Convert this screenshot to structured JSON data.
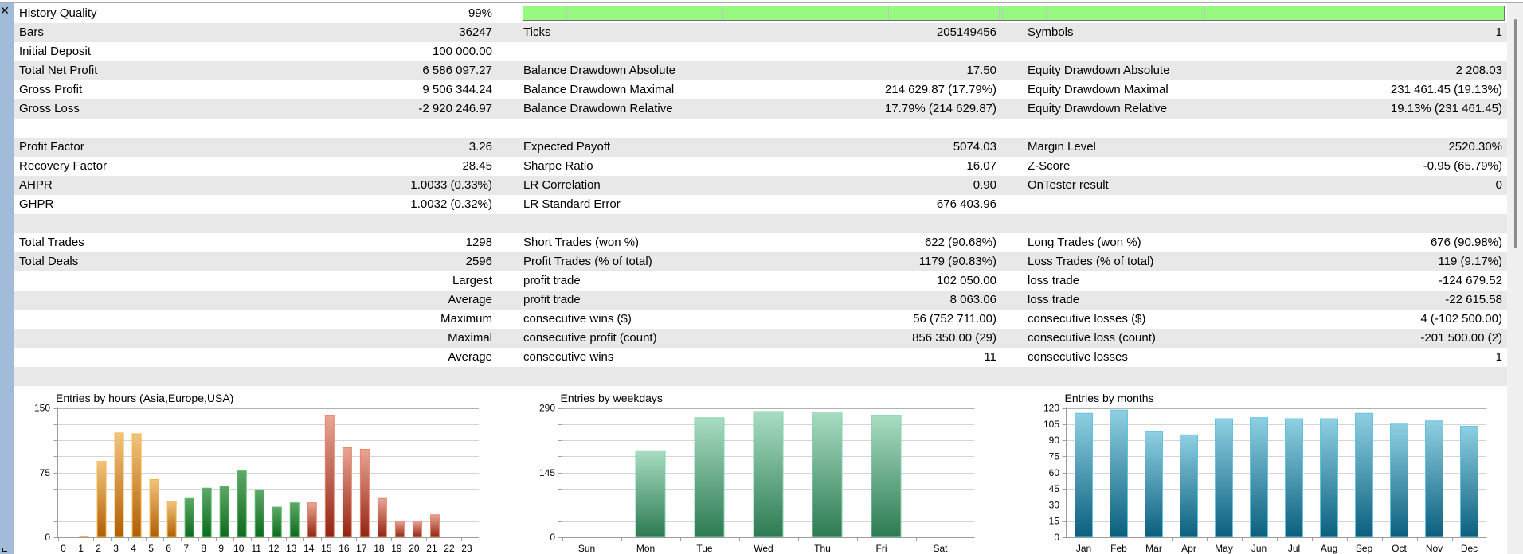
{
  "icons": {
    "close": "close-icon",
    "grip": "grip-icon"
  },
  "report": {
    "rows": [
      {
        "l1": "History Quality",
        "v1": "99%"
      },
      {
        "l1": "Bars",
        "v1": "36247",
        "l2": "Ticks",
        "v2": "205149456",
        "l3": "Symbols",
        "v3": "1"
      },
      {
        "l1": "Initial Deposit",
        "v1": "100 000.00"
      },
      {
        "l1": "Total Net Profit",
        "v1": "6 586 097.27",
        "l2": "Balance Drawdown Absolute",
        "v2": "17.50",
        "l3": "Equity Drawdown Absolute",
        "v3": "2 208.03"
      },
      {
        "l1": "Gross Profit",
        "v1": "9 506 344.24",
        "l2": "Balance Drawdown Maximal",
        "v2": "214 629.87 (17.79%)",
        "l3": "Equity Drawdown Maximal",
        "v3": "231 461.45 (19.13%)"
      },
      {
        "l1": "Gross Loss",
        "v1": "-2 920 246.97",
        "l2": "Balance Drawdown Relative",
        "v2": "17.79% (214 629.87)",
        "l3": "Equity Drawdown Relative",
        "v3": "19.13% (231 461.45)"
      },
      {},
      {
        "l1": "Profit Factor",
        "v1": "3.26",
        "l2": "Expected Payoff",
        "v2": "5074.03",
        "l3": "Margin Level",
        "v3": "2520.30%"
      },
      {
        "l1": "Recovery Factor",
        "v1": "28.45",
        "l2": "Sharpe Ratio",
        "v2": "16.07",
        "l3": "Z-Score",
        "v3": "-0.95 (65.79%)"
      },
      {
        "l1": "AHPR",
        "v1": "1.0033 (0.33%)",
        "l2": "LR Correlation",
        "v2": "0.90",
        "l3": "OnTester result",
        "v3": "0"
      },
      {
        "l1": "GHPR",
        "v1": "1.0032 (0.32%)",
        "l2": "LR Standard Error",
        "v2": "676 403.96"
      },
      {},
      {
        "l1": "Total Trades",
        "v1": "1298",
        "l2": "Short Trades (won %)",
        "v2": "622 (90.68%)",
        "l3": "Long Trades (won %)",
        "v3": "676 (90.98%)"
      },
      {
        "l1": "Total Deals",
        "v1": "2596",
        "l2": "Profit Trades (% of total)",
        "v2": "1179 (90.83%)",
        "l3": "Loss Trades (% of total)",
        "v3": "119 (9.17%)"
      },
      {
        "v1": "Largest",
        "l2": "profit trade",
        "v2": "102 050.00",
        "l3": "loss trade",
        "v3": "-124 679.52"
      },
      {
        "v1": "Average",
        "l2": "profit trade",
        "v2": "8 063.06",
        "l3": "loss trade",
        "v3": "-22 615.58"
      },
      {
        "v1": "Maximum",
        "l2": "consecutive wins ($)",
        "v2": "56 (752 711.00)",
        "l3": "consecutive losses ($)",
        "v3": "4 (-102 500.00)"
      },
      {
        "v1": "Maximal",
        "l2": "consecutive profit (count)",
        "v2": "856 350.00 (29)",
        "l3": "consecutive loss (count)",
        "v3": "-201 500.00 (2)"
      },
      {
        "v1": "Average",
        "l2": "consecutive wins",
        "v2": "11",
        "l3": "consecutive losses",
        "v3": "1"
      },
      {}
    ],
    "colors": {
      "stripe": "#e8e8e8",
      "quality_bar": "#98f982",
      "side_strip": "#a2bbd8"
    }
  },
  "chart_data": [
    {
      "type": "bar",
      "title": "Entries by hours (Asia,Europe,USA)",
      "xlabel": "",
      "ylabel": "",
      "categories": [
        "0",
        "1",
        "2",
        "3",
        "4",
        "5",
        "6",
        "7",
        "8",
        "9",
        "10",
        "11",
        "12",
        "13",
        "14",
        "15",
        "16",
        "17",
        "18",
        "19",
        "20",
        "21",
        "22",
        "23"
      ],
      "values": [
        0,
        1,
        88,
        121,
        120,
        67,
        42,
        45,
        57,
        59,
        77,
        55,
        35,
        40,
        40,
        141,
        104,
        102,
        45,
        19,
        19,
        26,
        0,
        0
      ],
      "ylim": [
        0,
        150
      ],
      "yticks": [
        0,
        75,
        150
      ],
      "grid": true,
      "grid_step": 18.75,
      "bar_color_index": [
        0,
        0,
        0,
        0,
        0,
        0,
        0,
        1,
        1,
        1,
        1,
        1,
        1,
        1,
        2,
        2,
        2,
        2,
        2,
        2,
        2,
        2,
        2,
        2
      ],
      "colors": [
        {
          "top": "#f2c47e",
          "bottom": "#b05e04",
          "border": "#f5b547"
        },
        {
          "top": "#5fa868",
          "bottom": "#0b6a1c",
          "border": "#5cba68"
        },
        {
          "top": "#eaa595",
          "bottom": "#912412",
          "border": "#e5846d"
        }
      ]
    },
    {
      "type": "bar",
      "title": "Entries by weekdays",
      "xlabel": "",
      "ylabel": "",
      "categories": [
        "Sun",
        "Mon",
        "Tue",
        "Wed",
        "Thu",
        "Fri",
        "Sat"
      ],
      "values": [
        0,
        194,
        268,
        282,
        281,
        273,
        0
      ],
      "ylim": [
        0,
        290
      ],
      "yticks": [
        0,
        145,
        290
      ],
      "grid": true,
      "grid_step": 36.25,
      "colors": [
        {
          "top": "#a9ddc2",
          "bottom": "#2c7a52",
          "border": "#86d0ac"
        }
      ]
    },
    {
      "type": "bar",
      "title": "Entries by months",
      "xlabel": "",
      "ylabel": "",
      "categories": [
        "Jan",
        "Feb",
        "Mar",
        "Apr",
        "May",
        "Jun",
        "Jul",
        "Aug",
        "Sep",
        "Oct",
        "Nov",
        "Dec"
      ],
      "values": [
        115,
        118,
        98,
        95,
        110,
        111,
        110,
        110,
        115,
        105,
        108,
        103
      ],
      "ylim": [
        0,
        120
      ],
      "yticks": [
        0,
        15,
        30,
        45,
        60,
        75,
        90,
        105,
        120
      ],
      "grid": true,
      "grid_step": 15,
      "colors": [
        {
          "top": "#8fd0e2",
          "bottom": "#0a5f7e",
          "border": "#62c3de"
        }
      ]
    }
  ]
}
